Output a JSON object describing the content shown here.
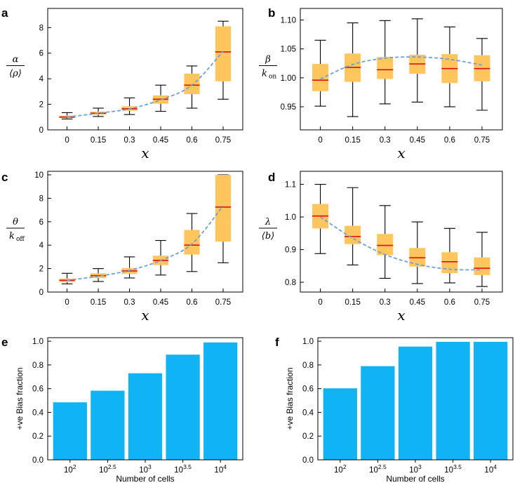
{
  "colors": {
    "box": "#fec65c",
    "median": "#e01010",
    "whisker": "#000000",
    "trend": "#6f9fd8",
    "bar": "#10b4f4"
  },
  "chart_data": [
    {
      "id": "a",
      "panel": "a",
      "type": "box",
      "categories": [
        "0",
        "0.15",
        "0.3",
        "0.45",
        "0.6",
        "0.75"
      ],
      "xlabel": "x",
      "ylabel": {
        "num": "α",
        "den": "⟨ρ⟩"
      },
      "ylim": [
        0,
        9.5
      ],
      "yticks": [
        0,
        2,
        4,
        6,
        8
      ],
      "boxes": [
        {
          "min": 0.85,
          "q1": 0.92,
          "median": 1.0,
          "q3": 1.12,
          "max": 1.35
        },
        {
          "min": 1.05,
          "q1": 1.2,
          "median": 1.3,
          "q3": 1.42,
          "max": 1.7
        },
        {
          "min": 1.2,
          "q1": 1.5,
          "median": 1.65,
          "q3": 1.85,
          "max": 2.5
        },
        {
          "min": 1.45,
          "q1": 2.05,
          "median": 2.4,
          "q3": 2.7,
          "max": 3.5
        },
        {
          "min": 1.7,
          "q1": 2.8,
          "median": 3.5,
          "q3": 4.4,
          "max": 5.0
        },
        {
          "min": 2.4,
          "q1": 3.8,
          "median": 6.1,
          "q3": 8.1,
          "max": 8.5
        }
      ],
      "trend": [
        1.0,
        1.3,
        1.65,
        2.35,
        3.5,
        6.15
      ]
    },
    {
      "id": "b",
      "panel": "b",
      "type": "box",
      "categories": [
        "0",
        "0.15",
        "0.3",
        "0.45",
        "0.6",
        "0.75"
      ],
      "xlabel": "x",
      "ylabel": {
        "num": "β",
        "den": "k",
        "sub": "on"
      },
      "ylim": [
        0.91,
        1.12
      ],
      "yticks": [
        0.95,
        1.0,
        1.05,
        1.1
      ],
      "ytickfmt": 2,
      "boxes": [
        {
          "min": 0.951,
          "q1": 0.977,
          "median": 0.996,
          "q3": 1.024,
          "max": 1.065
        },
        {
          "min": 0.933,
          "q1": 0.993,
          "median": 1.018,
          "q3": 1.042,
          "max": 1.095
        },
        {
          "min": 0.955,
          "q1": 0.998,
          "median": 1.014,
          "q3": 1.036,
          "max": 1.099
        },
        {
          "min": 0.958,
          "q1": 1.007,
          "median": 1.024,
          "q3": 1.04,
          "max": 1.102
        },
        {
          "min": 0.95,
          "q1": 0.991,
          "median": 1.016,
          "q3": 1.041,
          "max": 1.088
        },
        {
          "min": 0.944,
          "q1": 0.994,
          "median": 1.016,
          "q3": 1.039,
          "max": 1.068
        }
      ],
      "trend": [
        0.998,
        1.023,
        1.034,
        1.036,
        1.032,
        1.022
      ]
    },
    {
      "id": "c",
      "panel": "c",
      "type": "box",
      "categories": [
        "0",
        "0.15",
        "0.3",
        "0.45",
        "0.6",
        "0.75"
      ],
      "xlabel": "x",
      "ylabel": {
        "num": "θ",
        "den": "k",
        "sub": "off"
      },
      "ylim": [
        0,
        10.3
      ],
      "yticks": [
        0,
        2,
        4,
        6,
        8,
        10
      ],
      "boxes": [
        {
          "min": 0.7,
          "q1": 0.85,
          "median": 1.0,
          "q3": 1.15,
          "max": 1.6
        },
        {
          "min": 0.9,
          "q1": 1.2,
          "median": 1.4,
          "q3": 1.6,
          "max": 2.0
        },
        {
          "min": 1.2,
          "q1": 1.55,
          "median": 1.8,
          "q3": 2.05,
          "max": 3.0
        },
        {
          "min": 1.45,
          "q1": 2.3,
          "median": 2.7,
          "q3": 3.1,
          "max": 4.4
        },
        {
          "min": 1.75,
          "q1": 3.2,
          "median": 4.0,
          "q3": 5.3,
          "max": 6.7
        },
        {
          "min": 2.5,
          "q1": 4.3,
          "median": 7.25,
          "q3": 10.0,
          "max": 10.0
        }
      ],
      "trend": [
        1.0,
        1.35,
        1.85,
        2.7,
        4.1,
        7.35
      ]
    },
    {
      "id": "d",
      "panel": "d",
      "type": "box",
      "categories": [
        "0",
        "0.15",
        "0.3",
        "0.45",
        "0.6",
        "0.75"
      ],
      "xlabel": "x",
      "ylabel": {
        "num": "λ",
        "den": "⟨b⟩"
      },
      "ylim": [
        0.77,
        1.14
      ],
      "yticks": [
        0.8,
        0.9,
        1.0,
        1.1
      ],
      "ytickfmt": 1,
      "boxes": [
        {
          "min": 0.888,
          "q1": 0.965,
          "median": 1.003,
          "q3": 1.04,
          "max": 1.1
        },
        {
          "min": 0.853,
          "q1": 0.917,
          "median": 0.94,
          "q3": 0.973,
          "max": 1.09
        },
        {
          "min": 0.812,
          "q1": 0.883,
          "median": 0.913,
          "q3": 0.948,
          "max": 1.035
        },
        {
          "min": 0.796,
          "q1": 0.848,
          "median": 0.875,
          "q3": 0.905,
          "max": 0.985
        },
        {
          "min": 0.798,
          "q1": 0.828,
          "median": 0.863,
          "q3": 0.892,
          "max": 0.965
        },
        {
          "min": 0.787,
          "q1": 0.822,
          "median": 0.843,
          "q3": 0.876,
          "max": 0.953
        }
      ],
      "trend": [
        1.0,
        0.935,
        0.885,
        0.855,
        0.84,
        0.838
      ]
    },
    {
      "id": "e",
      "panel": "e",
      "type": "bar",
      "categories": [
        "10^2",
        "10^2.5",
        "10^3",
        "10^3.5",
        "10^4"
      ],
      "values": [
        0.485,
        0.583,
        0.73,
        0.887,
        0.99
      ],
      "xlabel": "Number of cells",
      "ylabel": "+ve Bias fraction",
      "ylim": [
        0,
        1.03
      ],
      "yticks": [
        0.0,
        0.2,
        0.4,
        0.6,
        0.8,
        1.0
      ]
    },
    {
      "id": "f",
      "panel": "f",
      "type": "bar",
      "categories": [
        "10^2",
        "10^2.5",
        "10^3",
        "10^3.5",
        "10^4"
      ],
      "values": [
        0.603,
        0.79,
        0.955,
        0.995,
        0.995
      ],
      "xlabel": "Number of cells",
      "ylabel": "+ve Bias fraction",
      "ylim": [
        0,
        1.03
      ],
      "yticks": [
        0.0,
        0.2,
        0.4,
        0.6,
        0.8,
        1.0
      ]
    }
  ]
}
